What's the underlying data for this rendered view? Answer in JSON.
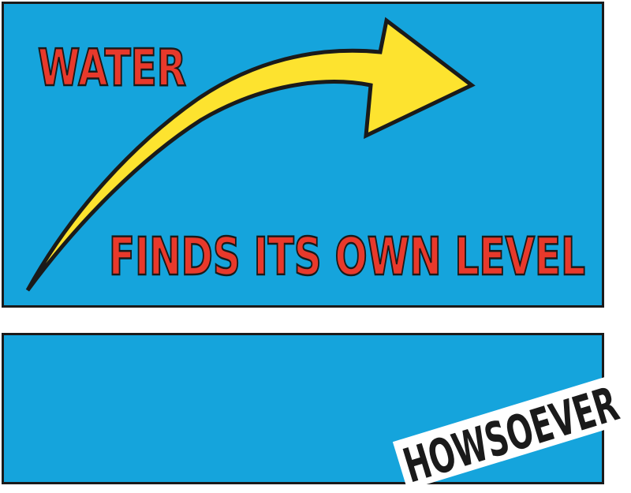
{
  "colors": {
    "panel_blue": "#15a4dc",
    "outline": "#1a1a1a",
    "text_red": "#e8392b",
    "arrow_yellow": "#fde32f",
    "background": "#ffffff"
  },
  "artwork": {
    "word_top": "WATER",
    "phrase": "FINDS ITS OWN LEVEL",
    "word_bottom": "HOWSOEVER"
  },
  "icons": {
    "arrow": "curved-arrow-icon"
  }
}
